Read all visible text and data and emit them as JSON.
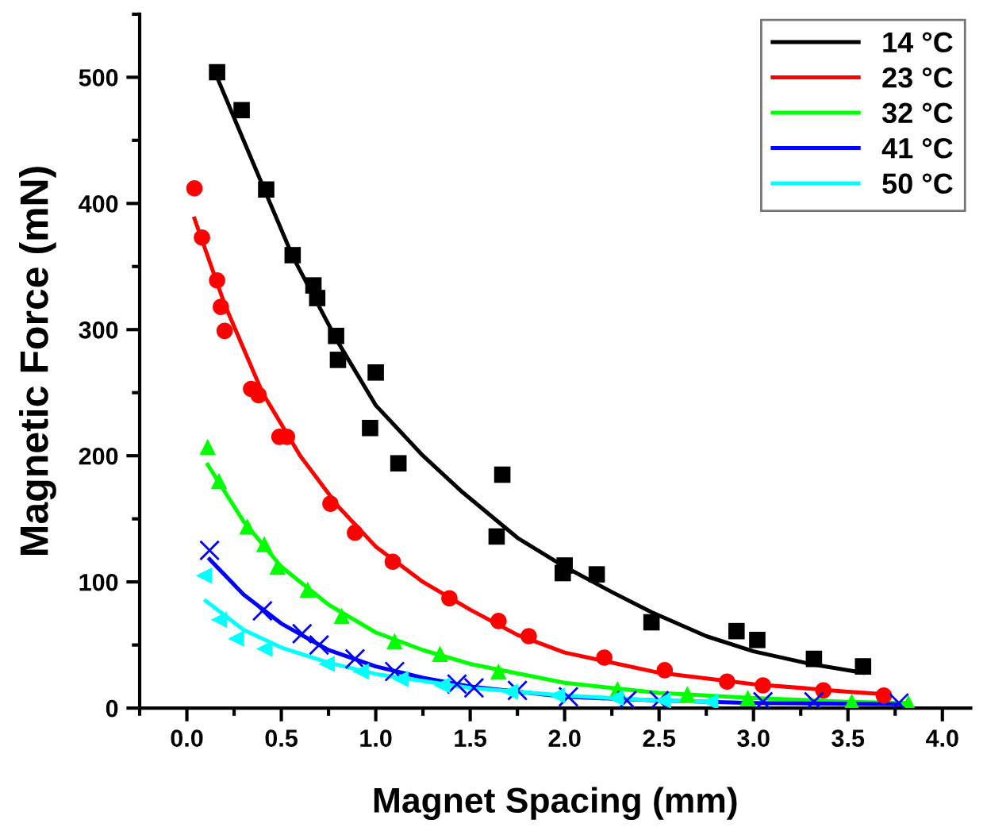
{
  "chart_data": {
    "type": "scatter",
    "xlabel": "Magnet Spacing (mm)",
    "ylabel": "Magnetic Force (mN)",
    "xlim": [
      -0.25,
      4.15
    ],
    "ylim": [
      0,
      550
    ],
    "xticks": [
      {
        "value": 0,
        "label": "0.0"
      },
      0.5,
      {
        "value": 1,
        "label": "1.0"
      },
      1.5,
      {
        "value": 2,
        "label": "2.0"
      },
      2.5,
      {
        "value": 3,
        "label": "3.0"
      },
      3.5,
      {
        "value": 4,
        "label": "4.0"
      }
    ],
    "yticks": [
      0,
      100,
      200,
      300,
      400,
      500
    ],
    "grid": false,
    "legend": "top right",
    "series": [
      {
        "marker": "square",
        "color": "#000000",
        "x": [
          0.16,
          0.29,
          0.42,
          0.56,
          0.67,
          0.69,
          0.79,
          0.8,
          0.97,
          1.0,
          1.12,
          1.64,
          1.67,
          1.99,
          2.0,
          2.17,
          2.46,
          2.91,
          3.02,
          3.32,
          3.58
        ],
        "values": [
          504,
          474,
          411,
          359,
          335,
          325,
          295,
          276,
          222,
          266,
          194,
          136,
          185,
          107,
          113,
          106,
          68,
          61,
          54,
          39,
          33
        ]
      },
      {
        "marker": "circle",
        "color": "#ff0000",
        "x": [
          0.04,
          0.08,
          0.16,
          0.18,
          0.2,
          0.34,
          0.38,
          0.49,
          0.53,
          0.76,
          0.89,
          1.09,
          1.39,
          1.65,
          1.81,
          2.21,
          2.53,
          2.86,
          3.05,
          3.37,
          3.69
        ],
        "values": [
          412,
          373,
          339,
          318,
          299,
          253,
          248,
          215,
          215,
          162,
          139,
          116,
          87,
          69,
          57,
          40,
          30,
          21,
          18,
          14,
          10
        ]
      },
      {
        "marker": "triangle",
        "color": "#00ff00",
        "x": [
          0.11,
          0.17,
          0.32,
          0.41,
          0.48,
          0.64,
          0.82,
          1.1,
          1.34,
          1.65,
          2.28,
          2.65,
          2.97,
          3.52,
          3.82
        ],
        "values": [
          207,
          180,
          144,
          130,
          112,
          94,
          73,
          53,
          43,
          29,
          15,
          11,
          8,
          5,
          4
        ]
      },
      {
        "marker": "cross",
        "color": "#0000ff",
        "x": [
          0.12,
          0.4,
          0.61,
          0.7,
          0.89,
          1.1,
          1.43,
          1.52,
          1.75,
          2.02,
          2.33,
          2.5,
          3.05,
          3.32,
          3.77
        ],
        "values": [
          125,
          77,
          59,
          50,
          39,
          29,
          19,
          16,
          14,
          9,
          6,
          6,
          5,
          5,
          4
        ]
      },
      {
        "marker": "triangle-left",
        "color": "#00ffff",
        "x": [
          0.09,
          0.17,
          0.26,
          0.41,
          0.74,
          0.92,
          1.13,
          1.35,
          1.71,
          1.96,
          2.27,
          2.52,
          2.77
        ],
        "values": [
          105,
          70,
          55,
          47,
          35,
          29,
          23,
          18,
          13,
          10,
          8,
          6,
          5
        ]
      },
      {
        "type": "line",
        "name": "14 °C",
        "color": "#000000",
        "x": [
          0.16,
          0.3,
          0.56,
          0.8,
          1.0,
          1.25,
          1.46,
          1.75,
          2.0,
          2.25,
          2.46,
          2.75,
          3.0,
          3.3,
          3.58
        ],
        "values": [
          500,
          450,
          358,
          290,
          240,
          200,
          171,
          135,
          112,
          92,
          76,
          57,
          45,
          35,
          28
        ]
      },
      {
        "type": "line",
        "name": "23 °C",
        "color": "#ff0000",
        "x": [
          0.04,
          0.2,
          0.4,
          0.6,
          0.8,
          1.0,
          1.25,
          1.5,
          1.75,
          2.0,
          2.5,
          3.0,
          3.5,
          3.69
        ],
        "values": [
          388,
          320,
          250,
          200,
          160,
          128,
          100,
          78,
          58,
          44,
          28,
          19,
          13,
          11
        ]
      },
      {
        "type": "line",
        "name": "32 °C",
        "color": "#00ff00",
        "x": [
          0.11,
          0.3,
          0.5,
          0.75,
          1.0,
          1.25,
          1.5,
          2.0,
          2.5,
          3.0,
          3.5,
          3.82
        ],
        "values": [
          193,
          148,
          112,
          82,
          60,
          46,
          35,
          20,
          12,
          8,
          5,
          4
        ]
      },
      {
        "type": "line",
        "name": "41 °C",
        "color": "#0000ff",
        "x": [
          0.12,
          0.3,
          0.5,
          0.75,
          1.0,
          1.25,
          1.5,
          2.0,
          2.5,
          3.0,
          3.77
        ],
        "values": [
          118,
          90,
          67,
          46,
          33,
          24,
          17,
          9,
          6,
          4,
          3
        ]
      },
      {
        "type": "line",
        "name": "50 °C",
        "color": "#00ffff",
        "x": [
          0.1,
          0.3,
          0.5,
          0.75,
          1.0,
          1.5,
          2.0,
          2.5,
          2.77
        ],
        "values": [
          85,
          62,
          48,
          36,
          27,
          16,
          10,
          6,
          5
        ]
      }
    ]
  }
}
